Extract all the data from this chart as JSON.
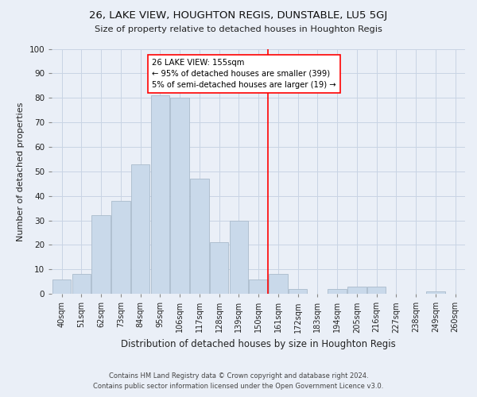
{
  "title": "26, LAKE VIEW, HOUGHTON REGIS, DUNSTABLE, LU5 5GJ",
  "subtitle": "Size of property relative to detached houses in Houghton Regis",
  "xlabel": "Distribution of detached houses by size in Houghton Regis",
  "ylabel": "Number of detached properties",
  "footer_line1": "Contains HM Land Registry data © Crown copyright and database right 2024.",
  "footer_line2": "Contains public sector information licensed under the Open Government Licence v3.0.",
  "categories": [
    "40sqm",
    "51sqm",
    "62sqm",
    "73sqm",
    "84sqm",
    "95sqm",
    "106sqm",
    "117sqm",
    "128sqm",
    "139sqm",
    "150sqm",
    "161sqm",
    "172sqm",
    "183sqm",
    "194sqm",
    "205sqm",
    "216sqm",
    "227sqm",
    "238sqm",
    "249sqm",
    "260sqm"
  ],
  "values": [
    6,
    8,
    32,
    38,
    53,
    81,
    80,
    47,
    21,
    30,
    6,
    8,
    2,
    0,
    2,
    3,
    3,
    0,
    0,
    1,
    0
  ],
  "bar_color": "#c9d9ea",
  "bar_edge_color": "#aabbcc",
  "grid_color": "#c8d4e4",
  "background_color": "#eaeff7",
  "red_line_x": 10.5,
  "annotation_text": "26 LAKE VIEW: 155sqm\n← 95% of detached houses are smaller (399)\n5% of semi-detached houses are larger (19) →",
  "ylim": [
    0,
    100
  ],
  "yticks": [
    0,
    10,
    20,
    30,
    40,
    50,
    60,
    70,
    80,
    90,
    100
  ]
}
